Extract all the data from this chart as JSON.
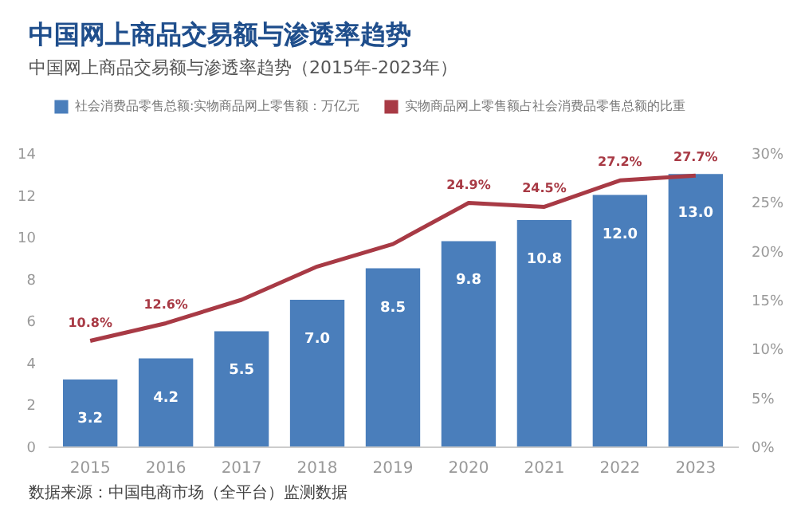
{
  "chart_data": {
    "type": "bar",
    "title": "中国网上商品交易额与渗透率趋势",
    "subtitle": "中国网上商品交易额与渗透率趋势（2015年-2023年）",
    "categories": [
      "2015",
      "2016",
      "2017",
      "2018",
      "2019",
      "2020",
      "2021",
      "2022",
      "2023"
    ],
    "series": [
      {
        "name": "社会消费品零售总额:实物商品网上零售额：万亿元",
        "color": "#4a7ebb",
        "values": [
          3.2,
          4.2,
          5.5,
          7.0,
          8.5,
          9.8,
          10.8,
          12.0,
          13.0
        ],
        "value_labels": [
          "3.2",
          "4.2",
          "5.5",
          "7.0",
          "8.5",
          "9.8",
          "10.8",
          "12.0",
          "13.0"
        ]
      },
      {
        "name": "实物商品网上零售额占社会消费品零售总额的比重",
        "type": "line",
        "axis": "y2",
        "color": "#a83a45",
        "values": [
          10.8,
          12.6,
          15.0,
          18.4,
          20.7,
          24.9,
          24.5,
          27.2,
          27.7
        ],
        "value_labels": [
          "10.8%",
          "12.6%",
          null,
          null,
          null,
          "24.9%",
          "24.5%",
          "27.2%",
          "27.7%"
        ]
      }
    ],
    "ylim": [
      0,
      14
    ],
    "yticks": [
      0,
      2,
      4,
      6,
      8,
      10,
      12,
      14
    ],
    "y2lim": [
      0,
      30
    ],
    "y2ticks": [
      {
        "value": 0,
        "label": "0%"
      },
      {
        "value": 5,
        "label": "5%"
      },
      {
        "value": 10,
        "label": "10%"
      },
      {
        "value": 15,
        "label": "15%"
      },
      {
        "value": 20,
        "label": "20%"
      },
      {
        "value": 25,
        "label": "25%"
      },
      {
        "value": 30,
        "label": "30%"
      }
    ],
    "grid": false,
    "legend": "top",
    "annotations": [
      "数据来源：中国电商市场（全平台）监测数据"
    ]
  }
}
